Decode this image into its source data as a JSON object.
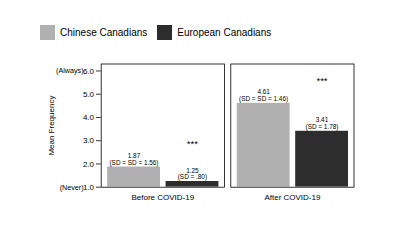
{
  "chart_data": {
    "type": "bar",
    "categories": [
      "Before COVID-19",
      "After COVID-19"
    ],
    "series": [
      {
        "name": "Chinese Canadians",
        "color": "#b0b0b0",
        "values": [
          1.87,
          4.61
        ],
        "sd_labels": [
          "(SD = SD = 1.56)",
          "(SD = SD = 1.46)"
        ]
      },
      {
        "name": "European Canadians",
        "color": "#2d2d2d",
        "values": [
          1.25,
          3.41
        ],
        "sd_labels": [
          "(SD = .80)",
          "(SD = 1.78)"
        ]
      }
    ],
    "ylabel": "Mean Frequency",
    "ylim": [
      1,
      6.3
    ],
    "yticks": [
      1,
      2,
      3,
      4,
      5,
      6
    ],
    "data_labels": true,
    "legend": "top",
    "grid": false,
    "annotations": [
      {
        "text": "***",
        "category": "Before COVID-19",
        "y": 2.72
      },
      {
        "text": "***",
        "category": "After COVID-19",
        "y": 5.42
      },
      {
        "text": "(Always)",
        "y": 6
      },
      {
        "text": "(Never)",
        "y": 1
      }
    ]
  }
}
